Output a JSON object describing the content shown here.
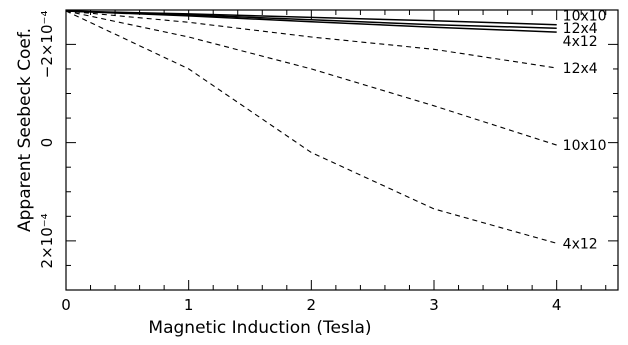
{
  "chart_data": {
    "type": "line",
    "title": "",
    "xlabel": "Magnetic Induction (Tesla)",
    "ylabel": "Apparent Seebeck Coef.",
    "xlim": [
      0,
      4.5
    ],
    "ylim": [
      0.0003,
      -0.00027
    ],
    "y_axis_inverted": true,
    "grid": false,
    "x_ticks": [
      0,
      1,
      2,
      3,
      4
    ],
    "x_tick_labels": [
      "0",
      "1",
      "2",
      "3",
      "4"
    ],
    "y_ticks": [
      -0.0002,
      0,
      0.0002
    ],
    "y_tick_labels": [
      "−2×10⁻⁴",
      "0",
      "2×10⁻⁴"
    ],
    "series": [
      {
        "name": "10x10",
        "style": "solid",
        "x": [
          0,
          1,
          2,
          3,
          4
        ],
        "y": [
          -0.000268,
          -0.000262,
          -0.000255,
          -0.000248,
          -0.00024
        ]
      },
      {
        "name": "12x4",
        "style": "solid",
        "x": [
          0,
          1,
          2,
          3,
          4
        ],
        "y": [
          -0.000268,
          -0.00026,
          -0.00025,
          -0.00024,
          -0.000233
        ]
      },
      {
        "name": "4x12",
        "style": "solid",
        "x": [
          0,
          1,
          2,
          3,
          4
        ],
        "y": [
          -0.000268,
          -0.000258,
          -0.000246,
          -0.000235,
          -0.000225
        ]
      },
      {
        "name": "12x4",
        "style": "dashed",
        "x": [
          0,
          1,
          2,
          3,
          4
        ],
        "y": [
          -0.000268,
          -0.000245,
          -0.000215,
          -0.00019,
          -0.000152
        ]
      },
      {
        "name": "10x10",
        "style": "dashed",
        "x": [
          0,
          1,
          2,
          3,
          4
        ],
        "y": [
          -0.000268,
          -0.000215,
          -0.00015,
          -7.5e-05,
          5e-06
        ]
      },
      {
        "name": "4x12",
        "style": "dashed",
        "x": [
          0,
          1,
          2,
          3,
          4
        ],
        "y": [
          -0.000268,
          -0.00015,
          2e-05,
          0.000135,
          0.000205
        ]
      }
    ]
  }
}
